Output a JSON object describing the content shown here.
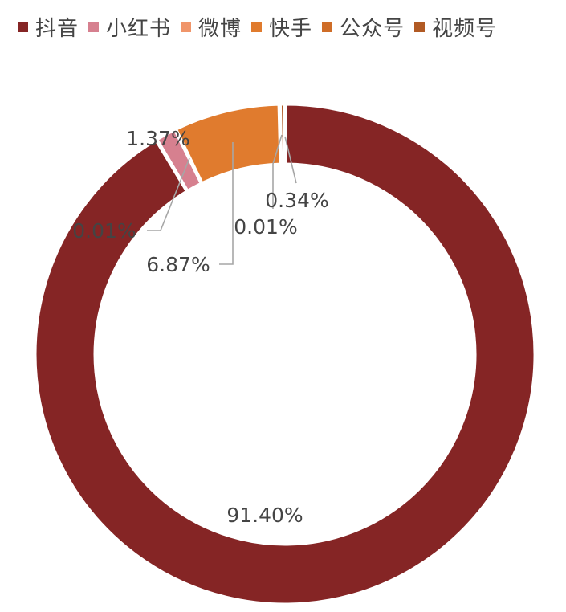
{
  "chart_data": {
    "type": "pie",
    "donut": true,
    "legend_position": "top",
    "categories": [
      "抖音",
      "小红书",
      "微博",
      "快手",
      "公众号",
      "视频号"
    ],
    "values": [
      91.4,
      1.37,
      0.01,
      6.87,
      0.01,
      0.34
    ],
    "value_labels": [
      "91.40%",
      "1.37%",
      "0.01%",
      "6.87%",
      "0.01%",
      "0.34%"
    ],
    "colors": [
      "#852525",
      "#d6808f",
      "#f0956a",
      "#e07b2e",
      "#cf6d28",
      "#b15a24"
    ]
  }
}
